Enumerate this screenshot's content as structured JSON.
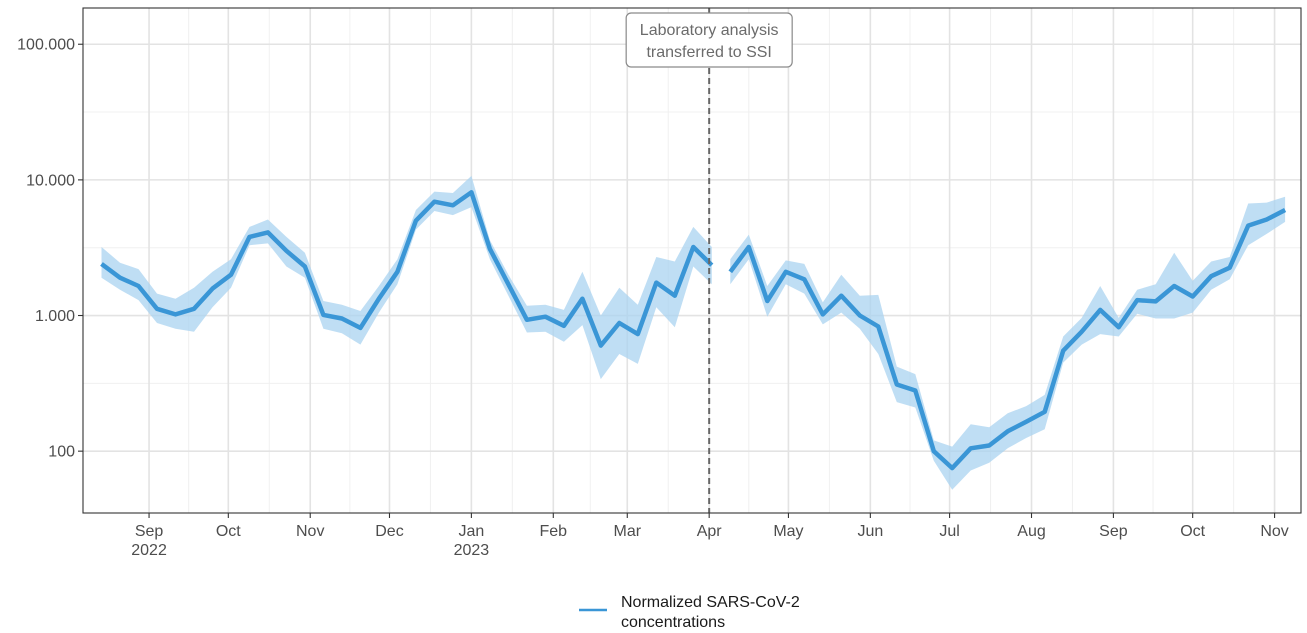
{
  "chart_data": {
    "type": "line",
    "log_y": true,
    "ylim": [
      35,
      185000
    ],
    "xlim": [
      "2022-08-07",
      "2023-11-11"
    ],
    "grid": true,
    "legend_position": "bottom",
    "y_ticks": [
      {
        "value": 100,
        "label": "100"
      },
      {
        "value": 1000,
        "label": "1.000"
      },
      {
        "value": 10000,
        "label": "10.000"
      },
      {
        "value": 100000,
        "label": "100.000"
      }
    ],
    "x_ticks": [
      {
        "date": "2022-09-01",
        "label": "Sep",
        "year": "2022"
      },
      {
        "date": "2022-10-01",
        "label": "Oct",
        "year": ""
      },
      {
        "date": "2022-11-01",
        "label": "Nov",
        "year": ""
      },
      {
        "date": "2022-12-01",
        "label": "Dec",
        "year": ""
      },
      {
        "date": "2023-01-01",
        "label": "Jan",
        "year": "2023"
      },
      {
        "date": "2023-02-01",
        "label": "Feb",
        "year": ""
      },
      {
        "date": "2023-03-01",
        "label": "Mar",
        "year": ""
      },
      {
        "date": "2023-04-01",
        "label": "Apr",
        "year": ""
      },
      {
        "date": "2023-05-01",
        "label": "May",
        "year": ""
      },
      {
        "date": "2023-06-01",
        "label": "Jun",
        "year": ""
      },
      {
        "date": "2023-07-01",
        "label": "Jul",
        "year": ""
      },
      {
        "date": "2023-08-01",
        "label": "Aug",
        "year": ""
      },
      {
        "date": "2023-09-01",
        "label": "Sep",
        "year": ""
      },
      {
        "date": "2023-10-01",
        "label": "Oct",
        "year": ""
      },
      {
        "date": "2023-11-01",
        "label": "Nov",
        "year": ""
      }
    ],
    "annotation": {
      "date": "2023-04-01",
      "line": "dashed",
      "lines": [
        "Laboratory analysis",
        "transferred to SSI"
      ]
    },
    "series": [
      {
        "name": "Normalized SARS-CoV-2 concentrations",
        "color": "#3a96d6",
        "band_color": "#a9d3f0",
        "segments": [
          [
            {
              "x": "2022-08-14",
              "y": 2400,
              "lo": 1900,
              "hi": 3200
            },
            {
              "x": "2022-08-21",
              "y": 1900,
              "lo": 1550,
              "hi": 2450
            },
            {
              "x": "2022-08-28",
              "y": 1650,
              "lo": 1300,
              "hi": 2200
            },
            {
              "x": "2022-09-04",
              "y": 1120,
              "lo": 880,
              "hi": 1450
            },
            {
              "x": "2022-09-11",
              "y": 1020,
              "lo": 800,
              "hi": 1330
            },
            {
              "x": "2022-09-18",
              "y": 1120,
              "lo": 760,
              "hi": 1600
            },
            {
              "x": "2022-09-25",
              "y": 1580,
              "lo": 1150,
              "hi": 2100
            },
            {
              "x": "2022-10-02",
              "y": 2000,
              "lo": 1600,
              "hi": 2600
            },
            {
              "x": "2022-10-09",
              "y": 3800,
              "lo": 3300,
              "hi": 4500
            },
            {
              "x": "2022-10-16",
              "y": 4100,
              "lo": 3400,
              "hi": 5100
            },
            {
              "x": "2022-10-23",
              "y": 3000,
              "lo": 2300,
              "hi": 3800
            },
            {
              "x": "2022-10-30",
              "y": 2300,
              "lo": 1900,
              "hi": 2900
            },
            {
              "x": "2022-11-06",
              "y": 1010,
              "lo": 800,
              "hi": 1280
            },
            {
              "x": "2022-11-13",
              "y": 950,
              "lo": 740,
              "hi": 1200
            },
            {
              "x": "2022-11-20",
              "y": 810,
              "lo": 610,
              "hi": 1080
            },
            {
              "x": "2022-11-27",
              "y": 1330,
              "lo": 1050,
              "hi": 1650
            },
            {
              "x": "2022-12-04",
              "y": 2100,
              "lo": 1700,
              "hi": 2600
            },
            {
              "x": "2022-12-11",
              "y": 5000,
              "lo": 4300,
              "hi": 6000
            },
            {
              "x": "2022-12-18",
              "y": 6900,
              "lo": 5900,
              "hi": 8200
            },
            {
              "x": "2022-12-25",
              "y": 6500,
              "lo": 5500,
              "hi": 8000
            },
            {
              "x": "2023-01-01",
              "y": 8100,
              "lo": 6300,
              "hi": 10700
            },
            {
              "x": "2023-01-08",
              "y": 3100,
              "lo": 2600,
              "hi": 3600
            },
            {
              "x": "2023-01-15",
              "y": 1700,
              "lo": 1400,
              "hi": 2000
            },
            {
              "x": "2023-01-22",
              "y": 930,
              "lo": 750,
              "hi": 1180
            },
            {
              "x": "2023-01-29",
              "y": 980,
              "lo": 760,
              "hi": 1200
            },
            {
              "x": "2023-02-05",
              "y": 840,
              "lo": 640,
              "hi": 1100
            },
            {
              "x": "2023-02-12",
              "y": 1330,
              "lo": 850,
              "hi": 2100
            },
            {
              "x": "2023-02-19",
              "y": 600,
              "lo": 340,
              "hi": 1000
            },
            {
              "x": "2023-02-26",
              "y": 880,
              "lo": 520,
              "hi": 1600
            },
            {
              "x": "2023-03-05",
              "y": 730,
              "lo": 440,
              "hi": 1200
            },
            {
              "x": "2023-03-12",
              "y": 1750,
              "lo": 1150,
              "hi": 2700
            },
            {
              "x": "2023-03-19",
              "y": 1400,
              "lo": 820,
              "hi": 2500
            },
            {
              "x": "2023-03-26",
              "y": 3200,
              "lo": 2300,
              "hi": 4500
            },
            {
              "x": "2023-04-02",
              "y": 2350,
              "lo": 1700,
              "hi": 3200
            }
          ],
          [
            {
              "x": "2023-04-09",
              "y": 2100,
              "lo": 1700,
              "hi": 2600
            },
            {
              "x": "2023-04-16",
              "y": 3200,
              "lo": 2600,
              "hi": 3950
            },
            {
              "x": "2023-04-23",
              "y": 1280,
              "lo": 980,
              "hi": 1650
            },
            {
              "x": "2023-04-30",
              "y": 2100,
              "lo": 1700,
              "hi": 2550
            },
            {
              "x": "2023-05-07",
              "y": 1850,
              "lo": 1450,
              "hi": 2400
            },
            {
              "x": "2023-05-14",
              "y": 1020,
              "lo": 860,
              "hi": 1250
            },
            {
              "x": "2023-05-21",
              "y": 1400,
              "lo": 1050,
              "hi": 2000
            },
            {
              "x": "2023-05-28",
              "y": 1000,
              "lo": 800,
              "hi": 1400
            },
            {
              "x": "2023-06-04",
              "y": 830,
              "lo": 520,
              "hi": 1420
            },
            {
              "x": "2023-06-11",
              "y": 310,
              "lo": 230,
              "hi": 420
            },
            {
              "x": "2023-06-18",
              "y": 280,
              "lo": 210,
              "hi": 370
            },
            {
              "x": "2023-06-25",
              "y": 100,
              "lo": 85,
              "hi": 120
            },
            {
              "x": "2023-07-02",
              "y": 75,
              "lo": 52,
              "hi": 108
            },
            {
              "x": "2023-07-09",
              "y": 105,
              "lo": 72,
              "hi": 158
            },
            {
              "x": "2023-07-16",
              "y": 110,
              "lo": 82,
              "hi": 150
            },
            {
              "x": "2023-07-23",
              "y": 140,
              "lo": 105,
              "hi": 190
            },
            {
              "x": "2023-07-30",
              "y": 165,
              "lo": 125,
              "hi": 215
            },
            {
              "x": "2023-08-06",
              "y": 195,
              "lo": 145,
              "hi": 260
            },
            {
              "x": "2023-08-13",
              "y": 550,
              "lo": 450,
              "hi": 700
            },
            {
              "x": "2023-08-20",
              "y": 760,
              "lo": 610,
              "hi": 960
            },
            {
              "x": "2023-08-27",
              "y": 1100,
              "lo": 730,
              "hi": 1650
            },
            {
              "x": "2023-09-03",
              "y": 820,
              "lo": 700,
              "hi": 960
            },
            {
              "x": "2023-09-10",
              "y": 1300,
              "lo": 1030,
              "hi": 1550
            },
            {
              "x": "2023-09-17",
              "y": 1270,
              "lo": 950,
              "hi": 1700
            },
            {
              "x": "2023-09-24",
              "y": 1650,
              "lo": 950,
              "hi": 2900
            },
            {
              "x": "2023-10-01",
              "y": 1380,
              "lo": 1050,
              "hi": 1800
            },
            {
              "x": "2023-10-08",
              "y": 1950,
              "lo": 1550,
              "hi": 2500
            },
            {
              "x": "2023-10-15",
              "y": 2250,
              "lo": 1850,
              "hi": 2700
            },
            {
              "x": "2023-10-22",
              "y": 4600,
              "lo": 3300,
              "hi": 6700
            },
            {
              "x": "2023-10-29",
              "y": 5100,
              "lo": 4000,
              "hi": 6800
            },
            {
              "x": "2023-11-05",
              "y": 6000,
              "lo": 4900,
              "hi": 7500
            }
          ]
        ]
      }
    ]
  },
  "legend": {
    "items": [
      {
        "lines": [
          "Normalized SARS-CoV-2",
          "concentrations"
        ],
        "color": "#3a96d6"
      }
    ]
  }
}
